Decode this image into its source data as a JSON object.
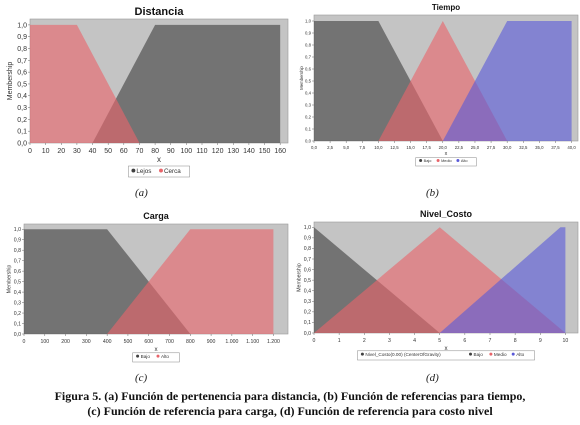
{
  "charts": [
    {
      "title": "Distancia",
      "ylabel": "Membership",
      "xlabel": "x",
      "yticks": [
        "0,0",
        "0,1",
        "0,2",
        "0,3",
        "0,4",
        "0,5",
        "0,6",
        "0,7",
        "0,8",
        "0,9",
        "1,0"
      ],
      "xticks": [
        "0",
        "10",
        "20",
        "30",
        "40",
        "50",
        "60",
        "70",
        "80",
        "90",
        "100",
        "110",
        "120",
        "130",
        "140",
        "150",
        "160"
      ],
      "legend": [
        {
          "label": "Lejos",
          "color": "#404040"
        },
        {
          "label": "Cerca",
          "color": "#e8646a"
        }
      ],
      "sublabel": "(a)"
    },
    {
      "title": "Tiempo",
      "ylabel": "Membership",
      "xlabel": "x",
      "yticks": [
        "0,0",
        "0,1",
        "0,2",
        "0,3",
        "0,4",
        "0,5",
        "0,6",
        "0,7",
        "0,8",
        "0,9",
        "1,0"
      ],
      "xticks": [
        "0,0",
        "2,5",
        "5,0",
        "7,5",
        "10,0",
        "12,5",
        "15,0",
        "17,5",
        "20,0",
        "22,5",
        "25,0",
        "27,5",
        "30,0",
        "32,5",
        "35,0",
        "37,5",
        "40,0"
      ],
      "legend": [
        {
          "label": "Bajo",
          "color": "#404040"
        },
        {
          "label": "Medio",
          "color": "#e8646a"
        },
        {
          "label": "Alto",
          "color": "#5a5ad8"
        }
      ],
      "sublabel": "(b)"
    },
    {
      "title": "Carga",
      "ylabel": "Membership",
      "xlabel": "x",
      "yticks": [
        "0,0",
        "0,1",
        "0,2",
        "0,3",
        "0,4",
        "0,5",
        "0,6",
        "0,7",
        "0,8",
        "0,9",
        "1,0"
      ],
      "xticks": [
        "0",
        "100",
        "200",
        "300",
        "400",
        "500",
        "600",
        "700",
        "800",
        "900",
        "1.000",
        "1.100",
        "1.200"
      ],
      "legend": [
        {
          "label": "Bajo",
          "color": "#404040"
        },
        {
          "label": "Alto",
          "color": "#e8646a"
        }
      ],
      "sublabel": "(c)"
    },
    {
      "title": "Nivel_Costo",
      "ylabel": "Membership",
      "xlabel": "x",
      "yticks": [
        "0,0",
        "0,1",
        "0,2",
        "0,3",
        "0,4",
        "0,5",
        "0,6",
        "0,7",
        "0,8",
        "0,9",
        "1,0"
      ],
      "xticks": [
        "0",
        "1",
        "2",
        "3",
        "4",
        "5",
        "6",
        "7",
        "8",
        "9",
        "10"
      ],
      "legend": [
        {
          "label": "Nivel_Costo(0.00) (CenterOfGravity)",
          "color": "#404040"
        },
        {
          "label": "Bajo",
          "color": "#404040"
        },
        {
          "label": "Medio",
          "color": "#e8646a"
        },
        {
          "label": "Alto",
          "color": "#5a5ad8"
        }
      ],
      "sublabel": "(d)"
    }
  ],
  "chart_data": [
    {
      "type": "area",
      "title": "Distancia",
      "xlabel": "x",
      "ylabel": "Membership",
      "xlim": [
        0,
        165
      ],
      "ylim": [
        0,
        1.05
      ],
      "legend_position": "bottom",
      "grid": false,
      "series": [
        {
          "name": "Lejos",
          "color": "#404040",
          "x": [
            40,
            80,
            160,
            160
          ],
          "y": [
            0,
            1,
            1,
            0
          ]
        },
        {
          "name": "Cerca",
          "color": "#e8646a",
          "x": [
            0,
            30,
            70
          ],
          "y": [
            1,
            1,
            0
          ]
        }
      ]
    },
    {
      "type": "area",
      "title": "Tiempo",
      "xlabel": "x",
      "ylabel": "Membership",
      "xlim": [
        0,
        41
      ],
      "ylim": [
        0,
        1.05
      ],
      "legend_position": "bottom",
      "grid": false,
      "series": [
        {
          "name": "Bajo",
          "color": "#404040",
          "x": [
            0,
            10,
            20
          ],
          "y": [
            1,
            1,
            0
          ]
        },
        {
          "name": "Medio",
          "color": "#e8646a",
          "x": [
            10,
            20,
            30
          ],
          "y": [
            0,
            1,
            0
          ]
        },
        {
          "name": "Alto",
          "color": "#5a5ad8",
          "x": [
            20,
            30,
            40,
            40
          ],
          "y": [
            0,
            1,
            1,
            0
          ]
        }
      ]
    },
    {
      "type": "area",
      "title": "Carga",
      "xlabel": "x",
      "ylabel": "Membership",
      "xlim": [
        0,
        1270
      ],
      "ylim": [
        0,
        1.05
      ],
      "legend_position": "bottom",
      "grid": false,
      "series": [
        {
          "name": "Bajo",
          "color": "#404040",
          "x": [
            0,
            400,
            800
          ],
          "y": [
            1,
            1,
            0
          ]
        },
        {
          "name": "Alto",
          "color": "#e8646a",
          "x": [
            400,
            800,
            1200,
            1200
          ],
          "y": [
            0,
            1,
            1,
            0
          ]
        }
      ]
    },
    {
      "type": "area",
      "title": "Nivel_Costo",
      "xlabel": "x",
      "ylabel": "Membership",
      "xlim": [
        0,
        10.5
      ],
      "ylim": [
        0,
        1.05
      ],
      "legend_position": "bottom",
      "grid": false,
      "series": [
        {
          "name": "Bajo",
          "color": "#404040",
          "x": [
            0,
            5
          ],
          "y": [
            1,
            0
          ]
        },
        {
          "name": "Medio",
          "color": "#e8646a",
          "x": [
            0,
            5,
            10
          ],
          "y": [
            0,
            1,
            0
          ]
        },
        {
          "name": "Alto",
          "color": "#5a5ad8",
          "x": [
            5,
            9.8,
            10,
            10
          ],
          "y": [
            0,
            1,
            1,
            0
          ]
        }
      ]
    }
  ],
  "caption": {
    "line1": "Figura 5. (a) Función de pertenencia para distancia, (b) Función de referencias para tiempo,",
    "line2": "(c) Función de referencia para carga, (d) Función de referencia para costo nivel"
  }
}
